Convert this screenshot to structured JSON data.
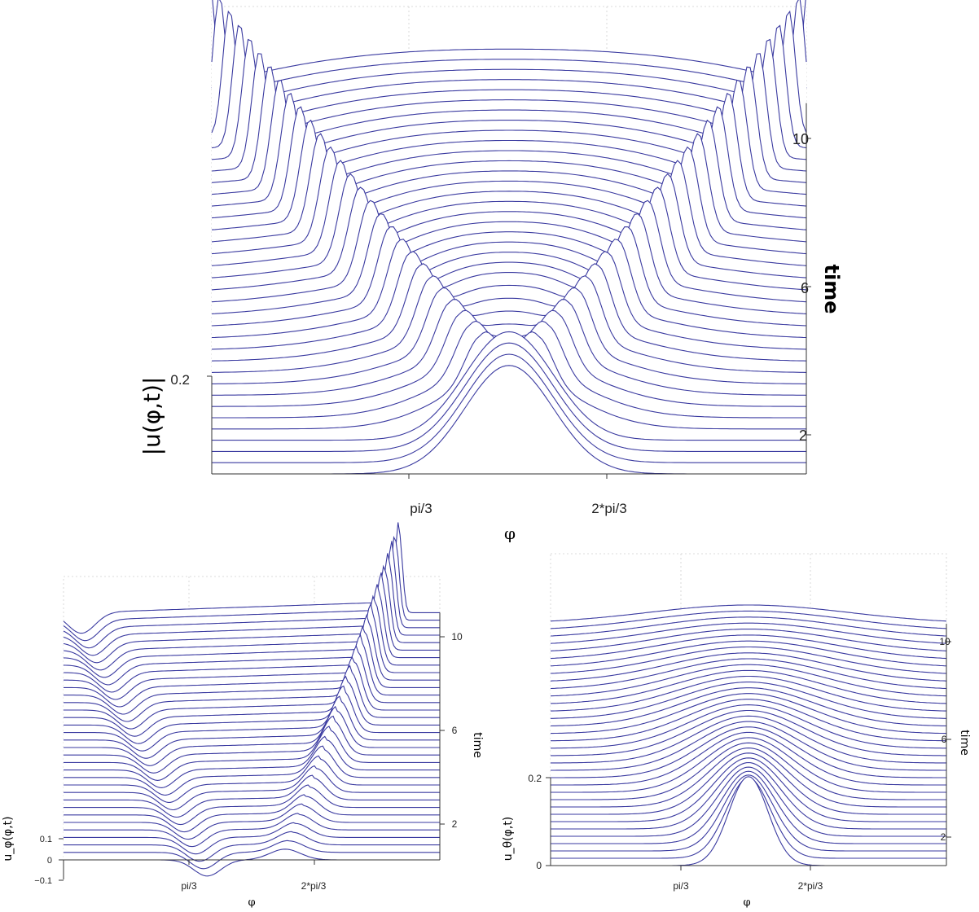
{
  "chart_data": [
    {
      "id": "top",
      "type": "line",
      "plot_style": "waterfall",
      "ylabel": "|u(φ,t)|",
      "xlabel": "φ",
      "zlabel": "time",
      "x_ticks": [
        "pi/3",
        "2*pi/3"
      ],
      "y_ticks": [
        "0.2"
      ],
      "time_ticks": [
        "2",
        "6",
        "10"
      ],
      "time_range": [
        0,
        11
      ],
      "n_traces": 34,
      "x_range": [
        0,
        3.1416
      ],
      "center": 1.5708,
      "grid": true,
      "profile": "initial Gaussian bump that splits into a flat central plateau bounded by two sharp peaks moving outward"
    },
    {
      "id": "bottom-left",
      "type": "line",
      "plot_style": "waterfall",
      "ylabel": "u_φ(φ,t)",
      "xlabel": "φ",
      "zlabel": "time",
      "x_ticks": [
        "pi/3",
        "2*pi/3"
      ],
      "y_ticks": [
        "0.1",
        "0",
        "−0.1"
      ],
      "time_ticks": [
        "2",
        "6",
        "10"
      ],
      "time_range": [
        0,
        11
      ],
      "n_traces": 34,
      "x_range": [
        0,
        3.1416
      ],
      "grid": true,
      "profile": "small dip-and-bump pair that separates into a leftward dip and rightward sharpening peak"
    },
    {
      "id": "bottom-right",
      "type": "line",
      "plot_style": "waterfall",
      "ylabel": "u_θ(φ,t)",
      "xlabel": "φ",
      "zlabel": "time",
      "x_ticks": [
        "pi/3",
        "2*pi/3"
      ],
      "y_ticks": [
        "0.2",
        "0"
      ],
      "time_ticks": [
        "2",
        "6",
        "10"
      ],
      "time_range": [
        0,
        11
      ],
      "n_traces": 34,
      "x_range": [
        0,
        3.1416
      ],
      "center": 1.5708,
      "grid": true,
      "profile": "Gaussian bump that spreads into a broad low plateau"
    }
  ]
}
